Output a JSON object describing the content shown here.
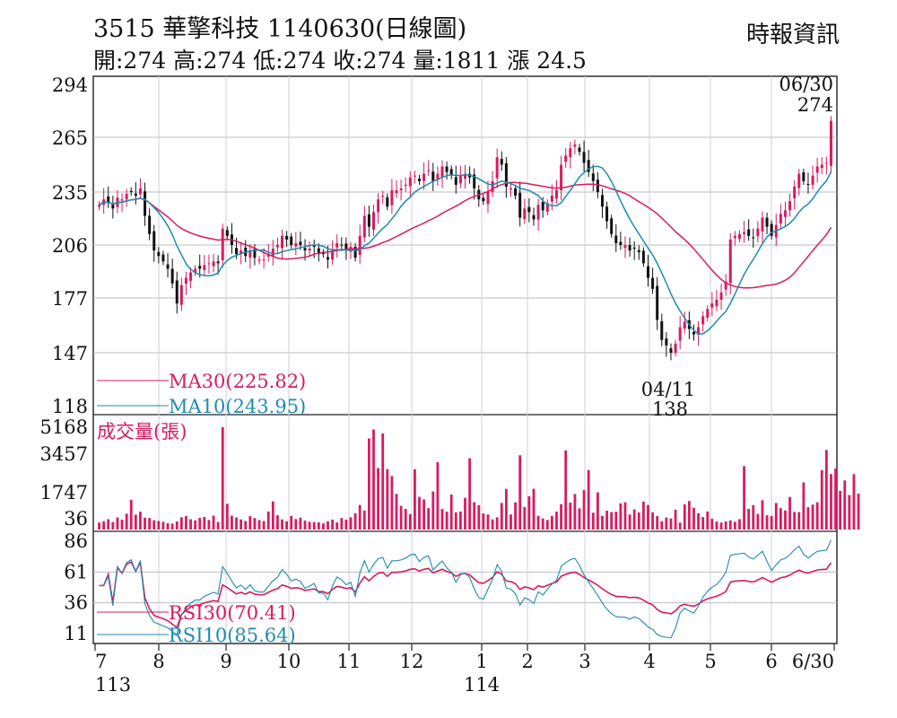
{
  "header": {
    "title": "3515  華擎科技 1140630(日線圖)",
    "source": "時報資訊",
    "ohlc": "開:274 高:274 低:274 收:274 量:1811 漲 24.5"
  },
  "chart_data": [
    {
      "type": "candlestick",
      "ylim": [
        118,
        294
      ],
      "yticks": [
        "294",
        "265",
        "235",
        "206",
        "177",
        "147",
        "118"
      ],
      "xticks": [
        "7",
        "8",
        "9",
        "10",
        "11",
        "12",
        "1",
        "2",
        "3",
        "4",
        "5",
        "6",
        "6/30"
      ],
      "xticks_sub": [
        "113",
        "",
        "",
        "",
        "",
        "",
        "114",
        "",
        "",
        "",
        "",
        "",
        ""
      ],
      "annotations": {
        "last_date": "06/30",
        "last_value": "274",
        "low_date": "04/11",
        "low_value": "138"
      },
      "series": [
        {
          "name": "MA30(225.82)",
          "color": "#d81b60"
        },
        {
          "name": "MA10(243.95)",
          "color": "#1e8bb0"
        }
      ],
      "close": [
        228,
        231,
        229,
        226,
        232,
        231,
        234,
        235,
        233,
        237,
        222,
        212,
        203,
        200,
        197,
        193,
        185,
        174,
        184,
        188,
        191,
        193,
        193,
        195,
        196,
        197,
        196,
        215,
        211,
        206,
        201,
        203,
        200,
        203,
        199,
        198,
        198,
        201,
        204,
        206,
        211,
        209,
        206,
        207,
        206,
        203,
        204,
        205,
        201,
        201,
        198,
        203,
        207,
        206,
        204,
        205,
        199,
        211,
        222,
        216,
        224,
        231,
        233,
        227,
        236,
        236,
        237,
        239,
        243,
        244,
        241,
        245,
        247,
        241,
        245,
        249,
        246,
        244,
        239,
        244,
        245,
        243,
        237,
        231,
        230,
        235,
        241,
        254,
        250,
        238,
        237,
        233,
        221,
        226,
        224,
        220,
        228,
        225,
        229,
        233,
        236,
        250,
        255,
        259,
        261,
        257,
        251,
        246,
        241,
        235,
        227,
        219,
        212,
        207,
        206,
        206,
        203,
        204,
        202,
        196,
        188,
        182,
        165,
        154,
        151,
        147,
        152,
        161,
        164,
        160,
        157,
        161,
        167,
        171,
        174,
        176,
        180,
        186,
        209,
        211,
        212,
        213,
        211,
        210,
        215,
        221,
        216,
        211,
        217,
        223,
        225,
        230,
        238,
        245,
        241,
        239,
        244,
        249,
        250,
        251,
        274
      ]
    },
    {
      "type": "bar",
      "title": "成交量(張)",
      "yticks": [
        "5168",
        "3457",
        "1747",
        "36"
      ],
      "ylim": [
        0,
        5168
      ],
      "values": [
        350,
        420,
        520,
        380,
        610,
        500,
        800,
        1500,
        750,
        900,
        600,
        580,
        470,
        430,
        390,
        320,
        300,
        410,
        620,
        680,
        520,
        460,
        590,
        640,
        480,
        700,
        380,
        5168,
        1300,
        700,
        610,
        510,
        430,
        680,
        580,
        480,
        430,
        910,
        1420,
        720,
        510,
        420,
        690,
        530,
        600,
        450,
        390,
        380,
        360,
        310,
        420,
        500,
        360,
        580,
        500,
        620,
        820,
        1240,
        960,
        4600,
        5050,
        3100,
        4860,
        3050,
        2700,
        1800,
        1200,
        1040,
        780,
        3050,
        1650,
        1520,
        1080,
        1920,
        3400,
        1040,
        900,
        1770,
        860,
        910,
        1600,
        3600,
        1380,
        1230,
        810,
        760,
        510,
        620,
        1340,
        2050,
        760,
        1370,
        3750,
        1140,
        1680,
        2060,
        690,
        560,
        480,
        690,
        900,
        1280,
        4000,
        1360,
        1790,
        1070,
        2000,
        3000,
        850,
        1880,
        690,
        950,
        880,
        900,
        1320,
        1380,
        760,
        1020,
        860,
        1410,
        1240,
        870,
        680,
        420,
        610,
        560,
        1000,
        350,
        1270,
        1440,
        1100,
        820,
        630,
        910,
        540,
        400,
        350,
        410,
        460,
        390,
        520,
        3200,
        1040,
        1230,
        790,
        1480,
        720,
        680,
        1340,
        1080,
        960,
        1640,
        890,
        880,
        2380,
        1130,
        1260,
        1380,
        3000,
        4020,
        2800,
        3080,
        1950,
        2480,
        1740,
        2800,
        1811
      ]
    },
    {
      "type": "line",
      "yticks": [
        "86",
        "61",
        "36",
        "11"
      ],
      "ylim": [
        0,
        100
      ],
      "series": [
        {
          "name": "RSI30(70.41)",
          "color": "#d81b60"
        },
        {
          "name": "RSI10(85.64)",
          "color": "#1e8bb0"
        }
      ]
    }
  ]
}
